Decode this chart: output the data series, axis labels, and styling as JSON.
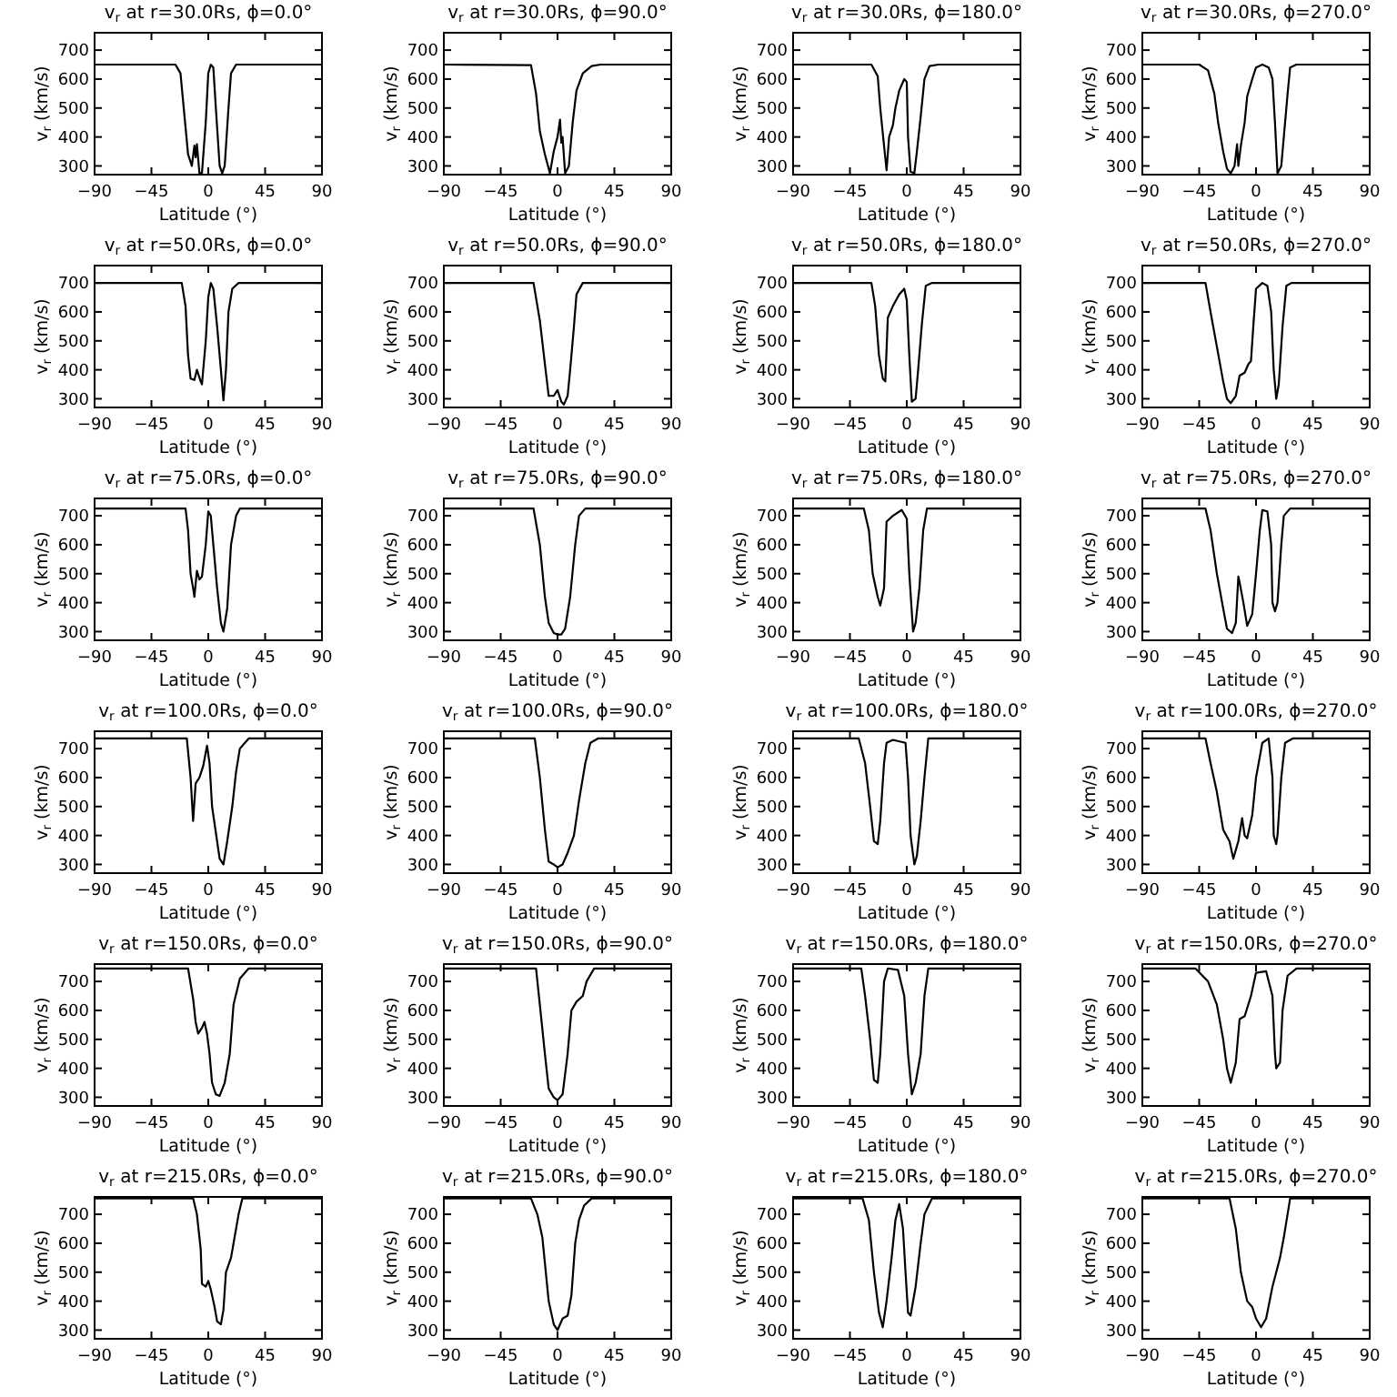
{
  "chart_data": [
    {
      "type": "line",
      "title": "v$_{r}$ at r=30.0Rs, ϕ=0.0°",
      "xlabel": "Latitude (°)",
      "ylabel": "v$_{r}$ (km/s)",
      "xlim": [
        -90,
        90
      ],
      "ylim": [
        270,
        760
      ],
      "xticks": [
        -90,
        -45,
        0,
        45,
        90
      ],
      "yticks": [
        300,
        400,
        500,
        600,
        700
      ],
      "series": [
        {
          "color": "#000000",
          "x": [
            -90,
            -26,
            -22,
            -19,
            -16,
            -13,
            -11,
            -10,
            -9,
            -7,
            -5,
            -2,
            0,
            2,
            4,
            6,
            9,
            11,
            13,
            16,
            18,
            22,
            90
          ],
          "values": [
            650,
            650,
            620,
            480,
            340,
            300,
            370,
            330,
            375,
            275,
            275,
            450,
            620,
            650,
            640,
            500,
            300,
            275,
            300,
            500,
            620,
            650,
            650
          ]
        }
      ]
    },
    {
      "type": "line",
      "title": "v$_{r}$ at r=30.0Rs, ϕ=90.0°",
      "xlabel": "Latitude (°)",
      "ylabel": "v$_{r}$ (km/s)",
      "xlim": [
        -90,
        90
      ],
      "ylim": [
        270,
        760
      ],
      "xticks": [
        -90,
        -45,
        0,
        45,
        90
      ],
      "yticks": [
        300,
        400,
        500,
        600,
        700
      ],
      "series": [
        {
          "color": "#000000",
          "x": [
            -90,
            -21,
            -17,
            -14,
            -10,
            -6,
            -3,
            0,
            2,
            3,
            4,
            6,
            9,
            12,
            15,
            20,
            27,
            34,
            90
          ],
          "values": [
            650,
            648,
            550,
            420,
            340,
            275,
            350,
            400,
            460,
            380,
            400,
            275,
            300,
            450,
            560,
            620,
            645,
            650,
            650
          ]
        }
      ]
    },
    {
      "type": "line",
      "title": "v$_{r}$ at r=30.0Rs, ϕ=180.0°",
      "xlabel": "Latitude (°)",
      "ylabel": "v$_{r}$ (km/s)",
      "xlim": [
        -90,
        90
      ],
      "ylim": [
        270,
        760
      ],
      "xticks": [
        -90,
        -45,
        0,
        45,
        90
      ],
      "yticks": [
        300,
        400,
        500,
        600,
        700
      ],
      "series": [
        {
          "color": "#000000",
          "x": [
            -90,
            -28,
            -23,
            -21,
            -18,
            -16,
            -14,
            -11,
            -9,
            -6,
            -2,
            0,
            1,
            3,
            6,
            8,
            11,
            14,
            18,
            25,
            90
          ],
          "values": [
            650,
            650,
            610,
            500,
            370,
            285,
            400,
            440,
            500,
            560,
            600,
            590,
            400,
            280,
            275,
            350,
            470,
            600,
            645,
            650,
            650
          ]
        }
      ]
    },
    {
      "type": "line",
      "title": "v$_{r}$ at r=30.0Rs, ϕ=270.0°",
      "xlabel": "Latitude (°)",
      "ylabel": "v$_{r}$ (km/s)",
      "xlim": [
        -90,
        90
      ],
      "ylim": [
        270,
        760
      ],
      "xticks": [
        -90,
        -45,
        0,
        45,
        90
      ],
      "yticks": [
        300,
        400,
        500,
        600,
        700
      ],
      "series": [
        {
          "color": "#000000",
          "x": [
            -90,
            -45,
            -38,
            -33,
            -30,
            -26,
            -23,
            -20,
            -17,
            -15,
            -14,
            -12,
            -9,
            -7,
            -3,
            0,
            5,
            10,
            13,
            15,
            17,
            20,
            22,
            25,
            27,
            32,
            90
          ],
          "values": [
            650,
            650,
            630,
            550,
            450,
            350,
            290,
            275,
            300,
            375,
            300,
            370,
            450,
            540,
            600,
            640,
            650,
            640,
            600,
            450,
            275,
            300,
            400,
            550,
            640,
            650,
            650
          ]
        }
      ]
    },
    {
      "type": "line",
      "title": "v$_{r}$ at r=50.0Rs, ϕ=0.0°",
      "xlabel": "Latitude (°)",
      "ylabel": "v$_{r}$ (km/s)",
      "xlim": [
        -90,
        90
      ],
      "ylim": [
        270,
        760
      ],
      "xticks": [
        -90,
        -45,
        0,
        45,
        90
      ],
      "yticks": [
        300,
        400,
        500,
        600,
        700
      ],
      "series": [
        {
          "color": "#000000",
          "x": [
            -90,
            -21,
            -18,
            -16,
            -14,
            -11,
            -9,
            -6,
            -5,
            -2,
            0,
            2,
            4,
            7,
            10,
            12,
            14,
            16,
            19,
            24,
            90
          ],
          "values": [
            700,
            700,
            620,
            450,
            370,
            365,
            400,
            360,
            350,
            500,
            650,
            700,
            680,
            550,
            400,
            295,
            400,
            600,
            680,
            700,
            700
          ]
        }
      ]
    },
    {
      "type": "line",
      "title": "v$_{r}$ at r=50.0Rs, ϕ=90.0°",
      "xlabel": "Latitude (°)",
      "ylabel": "v$_{r}$ (km/s)",
      "xlim": [
        -90,
        90
      ],
      "ylim": [
        270,
        760
      ],
      "xticks": [
        -90,
        -45,
        0,
        45,
        90
      ],
      "yticks": [
        300,
        400,
        500,
        600,
        700
      ],
      "series": [
        {
          "color": "#000000",
          "x": [
            -90,
            -19,
            -14,
            -10,
            -7,
            -3,
            0,
            3,
            5,
            8,
            10,
            13,
            15,
            20,
            90
          ],
          "values": [
            700,
            700,
            570,
            420,
            310,
            310,
            330,
            290,
            280,
            310,
            400,
            550,
            660,
            700,
            700
          ]
        }
      ]
    },
    {
      "type": "line",
      "title": "v$_{r}$ at r=50.0Rs, ϕ=180.0°",
      "xlabel": "Latitude (°)",
      "ylabel": "v$_{r}$ (km/s)",
      "xlim": [
        -90,
        90
      ],
      "ylim": [
        270,
        760
      ],
      "xticks": [
        -90,
        -45,
        0,
        45,
        90
      ],
      "yticks": [
        300,
        400,
        500,
        600,
        700
      ],
      "series": [
        {
          "color": "#000000",
          "x": [
            -90,
            -28,
            -25,
            -22,
            -19,
            -17,
            -15,
            -11,
            -6,
            -2,
            0,
            2,
            4,
            7,
            9,
            12,
            15,
            20,
            90
          ],
          "values": [
            700,
            700,
            620,
            450,
            370,
            360,
            580,
            620,
            660,
            680,
            640,
            450,
            290,
            300,
            400,
            560,
            690,
            700,
            700
          ]
        }
      ]
    },
    {
      "type": "line",
      "title": "v$_{r}$ at r=50.0Rs, ϕ=270.0°",
      "xlabel": "Latitude (°)",
      "ylabel": "v$_{r}$ (km/s)",
      "xlim": [
        -90,
        90
      ],
      "ylim": [
        270,
        760
      ],
      "xticks": [
        -90,
        -45,
        0,
        45,
        90
      ],
      "yticks": [
        300,
        400,
        500,
        600,
        700
      ],
      "series": [
        {
          "color": "#000000",
          "x": [
            -90,
            -40,
            -36,
            -31,
            -26,
            -23,
            -20,
            -16,
            -13,
            -9,
            -6,
            -4,
            -2,
            0,
            5,
            9,
            12,
            14,
            16,
            18,
            21,
            24,
            28,
            90
          ],
          "values": [
            700,
            700,
            600,
            480,
            360,
            300,
            285,
            310,
            380,
            390,
            420,
            430,
            560,
            680,
            700,
            690,
            600,
            400,
            300,
            350,
            550,
            690,
            700,
            700
          ]
        }
      ]
    },
    {
      "type": "line",
      "title": "v$_{r}$ at r=75.0Rs, ϕ=0.0°",
      "xlabel": "Latitude (°)",
      "ylabel": "v$_{r}$ (km/s)",
      "xlim": [
        -90,
        90
      ],
      "ylim": [
        270,
        760
      ],
      "xticks": [
        -90,
        -45,
        0,
        45,
        90
      ],
      "yticks": [
        300,
        400,
        500,
        600,
        700
      ],
      "series": [
        {
          "color": "#000000",
          "x": [
            -90,
            -18,
            -16,
            -14,
            -12,
            -11,
            -9,
            -7,
            -5,
            -2,
            0,
            2,
            4,
            7,
            10,
            12,
            15,
            18,
            22,
            25,
            90
          ],
          "values": [
            725,
            725,
            650,
            500,
            450,
            420,
            510,
            480,
            490,
            600,
            715,
            700,
            600,
            450,
            330,
            300,
            380,
            600,
            700,
            725,
            725
          ]
        }
      ]
    },
    {
      "type": "line",
      "title": "v$_{r}$ at r=75.0Rs, ϕ=90.0°",
      "xlabel": "Latitude (°)",
      "ylabel": "v$_{r}$ (km/s)",
      "xlim": [
        -90,
        90
      ],
      "ylim": [
        270,
        760
      ],
      "xticks": [
        -90,
        -45,
        0,
        45,
        90
      ],
      "yticks": [
        300,
        400,
        500,
        600,
        700
      ],
      "series": [
        {
          "color": "#000000",
          "x": [
            -90,
            -19,
            -14,
            -10,
            -7,
            -3,
            0,
            3,
            6,
            10,
            14,
            17,
            22,
            90
          ],
          "values": [
            725,
            725,
            600,
            420,
            330,
            295,
            290,
            290,
            310,
            420,
            600,
            700,
            725,
            725
          ]
        }
      ]
    },
    {
      "type": "line",
      "title": "v$_{r}$ at r=75.0Rs, ϕ=180.0°",
      "xlabel": "Latitude (°)",
      "ylabel": "v$_{r}$ (km/s)",
      "xlim": [
        -90,
        90
      ],
      "ylim": [
        270,
        760
      ],
      "xticks": [
        -90,
        -45,
        0,
        45,
        90
      ],
      "yticks": [
        300,
        400,
        500,
        600,
        700
      ],
      "series": [
        {
          "color": "#000000",
          "x": [
            -90,
            -34,
            -30,
            -27,
            -23,
            -21,
            -18,
            -16,
            -11,
            -4,
            0,
            2,
            5,
            7,
            10,
            13,
            16,
            90
          ],
          "values": [
            725,
            725,
            650,
            500,
            420,
            390,
            450,
            680,
            700,
            720,
            690,
            500,
            300,
            330,
            450,
            650,
            725,
            725
          ]
        }
      ]
    },
    {
      "type": "line",
      "title": "v$_{r}$ at r=75.0Rs, ϕ=270.0°",
      "xlabel": "Latitude (°)",
      "ylabel": "v$_{r}$ (km/s)",
      "xlim": [
        -90,
        90
      ],
      "ylim": [
        270,
        760
      ],
      "xticks": [
        -90,
        -45,
        0,
        45,
        90
      ],
      "yticks": [
        300,
        400,
        500,
        600,
        700
      ],
      "series": [
        {
          "color": "#000000",
          "x": [
            -90,
            -40,
            -36,
            -31,
            -26,
            -23,
            -19,
            -16,
            -14,
            -13,
            -10,
            -7,
            -3,
            0,
            3,
            5,
            9,
            12,
            13,
            15,
            17,
            20,
            22,
            27,
            90
          ],
          "values": [
            725,
            725,
            650,
            500,
            380,
            310,
            295,
            330,
            490,
            470,
            400,
            320,
            360,
            500,
            650,
            720,
            715,
            600,
            400,
            370,
            400,
            600,
            700,
            725,
            725
          ]
        }
      ]
    },
    {
      "type": "line",
      "title": "v$_{r}$ at r=100.0Rs, ϕ=0.0°",
      "xlabel": "Latitude (°)",
      "ylabel": "v$_{r}$ (km/s)",
      "xlim": [
        -90,
        90
      ],
      "ylim": [
        270,
        760
      ],
      "xticks": [
        -90,
        -45,
        0,
        45,
        90
      ],
      "yticks": [
        300,
        400,
        500,
        600,
        700
      ],
      "series": [
        {
          "color": "#000000",
          "x": [
            -90,
            -17,
            -14,
            -12,
            -10,
            -7,
            -4,
            -1,
            1,
            3,
            7,
            9,
            12,
            15,
            19,
            22,
            25,
            32,
            90
          ],
          "values": [
            735,
            735,
            600,
            450,
            580,
            600,
            640,
            710,
            650,
            500,
            380,
            320,
            300,
            380,
            500,
            620,
            700,
            735,
            735
          ]
        }
      ]
    },
    {
      "type": "line",
      "title": "v$_{r}$ at r=100.0Rs, ϕ=90.0°",
      "xlabel": "Latitude (°)",
      "ylabel": "v$_{r}$ (km/s)",
      "xlim": [
        -90,
        90
      ],
      "ylim": [
        270,
        760
      ],
      "xticks": [
        -90,
        -45,
        0,
        45,
        90
      ],
      "yticks": [
        300,
        400,
        500,
        600,
        700
      ],
      "series": [
        {
          "color": "#000000",
          "x": [
            -90,
            -18,
            -14,
            -10,
            -7,
            -3,
            0,
            4,
            8,
            13,
            17,
            22,
            26,
            32,
            90
          ],
          "values": [
            735,
            735,
            600,
            420,
            310,
            300,
            290,
            300,
            340,
            400,
            520,
            650,
            720,
            735,
            735
          ]
        }
      ]
    },
    {
      "type": "line",
      "title": "v$_{r}$ at r=100.0Rs, ϕ=180.0°",
      "xlabel": "Latitude (°)",
      "ylabel": "v$_{r}$ (km/s)",
      "xlim": [
        -90,
        90
      ],
      "ylim": [
        270,
        760
      ],
      "xticks": [
        -90,
        -45,
        0,
        45,
        90
      ],
      "yticks": [
        300,
        400,
        500,
        600,
        700
      ],
      "series": [
        {
          "color": "#000000",
          "x": [
            -90,
            -38,
            -33,
            -29,
            -26,
            -23,
            -21,
            -18,
            -16,
            -11,
            -1,
            1,
            3,
            6,
            8,
            11,
            14,
            17,
            90
          ],
          "values": [
            735,
            735,
            650,
            500,
            380,
            370,
            450,
            650,
            720,
            730,
            720,
            600,
            400,
            300,
            330,
            450,
            600,
            735,
            735
          ]
        }
      ]
    },
    {
      "type": "line",
      "title": "v$_{r}$ at r=100.0Rs, ϕ=270.0°",
      "xlabel": "Latitude (°)",
      "ylabel": "v$_{r}$ (km/s)",
      "xlim": [
        -90,
        90
      ],
      "ylim": [
        270,
        760
      ],
      "xticks": [
        -90,
        -45,
        0,
        45,
        90
      ],
      "yticks": [
        300,
        400,
        500,
        600,
        700
      ],
      "series": [
        {
          "color": "#000000",
          "x": [
            -90,
            -40,
            -36,
            -31,
            -26,
            -21,
            -18,
            -14,
            -11,
            -9,
            -7,
            -3,
            0,
            5,
            10,
            13,
            14,
            16,
            17,
            20,
            23,
            29,
            90
          ],
          "values": [
            735,
            735,
            650,
            550,
            420,
            380,
            320,
            380,
            460,
            400,
            390,
            470,
            600,
            720,
            735,
            600,
            400,
            370,
            400,
            600,
            720,
            735,
            735
          ]
        }
      ]
    },
    {
      "type": "line",
      "title": "v$_{r}$ at r=150.0Rs, ϕ=0.0°",
      "xlabel": "Latitude (°)",
      "ylabel": "v$_{r}$ (km/s)",
      "xlim": [
        -90,
        90
      ],
      "ylim": [
        270,
        760
      ],
      "xticks": [
        -90,
        -45,
        0,
        45,
        90
      ],
      "yticks": [
        300,
        400,
        500,
        600,
        700
      ],
      "series": [
        {
          "color": "#000000",
          "x": [
            -90,
            -16,
            -12,
            -10,
            -8,
            -5,
            -3,
            -1,
            1,
            3,
            6,
            9,
            13,
            17,
            20,
            25,
            32,
            90
          ],
          "values": [
            745,
            745,
            640,
            560,
            520,
            540,
            560,
            520,
            450,
            350,
            310,
            305,
            350,
            450,
            620,
            710,
            745,
            745
          ]
        }
      ]
    },
    {
      "type": "line",
      "title": "v$_{r}$ at r=150.0Rs, ϕ=90.0°",
      "xlabel": "Latitude (°)",
      "ylabel": "v$_{r}$ (km/s)",
      "xlim": [
        -90,
        90
      ],
      "ylim": [
        270,
        760
      ],
      "xticks": [
        -90,
        -45,
        0,
        45,
        90
      ],
      "yticks": [
        300,
        400,
        500,
        600,
        700
      ],
      "series": [
        {
          "color": "#000000",
          "x": [
            -90,
            -17,
            -14,
            -10,
            -7,
            -3,
            0,
            4,
            8,
            11,
            15,
            20,
            23,
            29,
            90
          ],
          "values": [
            745,
            745,
            620,
            450,
            330,
            300,
            290,
            310,
            450,
            600,
            630,
            650,
            700,
            745,
            745
          ]
        }
      ]
    },
    {
      "type": "line",
      "title": "v$_{r}$ at r=150.0Rs, ϕ=180.0°",
      "xlabel": "Latitude (°)",
      "ylabel": "v$_{r}$ (km/s)",
      "xlim": [
        -90,
        90
      ],
      "ylim": [
        270,
        760
      ],
      "xticks": [
        -90,
        -45,
        0,
        45,
        90
      ],
      "yticks": [
        300,
        400,
        500,
        600,
        700
      ],
      "series": [
        {
          "color": "#000000",
          "x": [
            -90,
            -36,
            -33,
            -29,
            -26,
            -23,
            -21,
            -18,
            -15,
            -7,
            -2,
            1,
            4,
            7,
            11,
            14,
            17,
            90
          ],
          "values": [
            745,
            745,
            650,
            500,
            360,
            350,
            450,
            700,
            745,
            740,
            650,
            450,
            310,
            350,
            450,
            650,
            745,
            745
          ]
        }
      ]
    },
    {
      "type": "line",
      "title": "v$_{r}$ at r=150.0Rs, ϕ=270.0°",
      "xlabel": "Latitude (°)",
      "ylabel": "v$_{r}$ (km/s)",
      "xlim": [
        -90,
        90
      ],
      "ylim": [
        270,
        760
      ],
      "xticks": [
        -90,
        -45,
        0,
        45,
        90
      ],
      "yticks": [
        300,
        400,
        500,
        600,
        700
      ],
      "series": [
        {
          "color": "#000000",
          "x": [
            -90,
            -48,
            -38,
            -31,
            -26,
            -23,
            -20,
            -16,
            -13,
            -9,
            -4,
            0,
            8,
            13,
            15,
            16,
            19,
            21,
            25,
            32,
            90
          ],
          "values": [
            745,
            745,
            700,
            620,
            500,
            400,
            350,
            420,
            570,
            580,
            650,
            730,
            735,
            650,
            450,
            400,
            420,
            600,
            720,
            745,
            745
          ]
        }
      ]
    },
    {
      "type": "line",
      "title": "v$_{r}$ at r=215.0Rs, ϕ=0.0°",
      "xlabel": "Latitude (°)",
      "ylabel": "v$_{r}$ (km/s)",
      "xlim": [
        -90,
        90
      ],
      "ylim": [
        270,
        760
      ],
      "xticks": [
        -90,
        -45,
        0,
        45,
        90
      ],
      "yticks": [
        300,
        400,
        500,
        600,
        700
      ],
      "series": [
        {
          "color": "#000000",
          "x": [
            -90,
            -12,
            -9,
            -6,
            -5,
            -2,
            0,
            2,
            5,
            7,
            10,
            12,
            14,
            18,
            20,
            24,
            27,
            90
          ],
          "values": [
            755,
            755,
            700,
            580,
            460,
            450,
            470,
            440,
            380,
            330,
            320,
            370,
            500,
            550,
            600,
            700,
            755,
            755
          ]
        }
      ]
    },
    {
      "type": "line",
      "title": "v$_{r}$ at r=215.0Rs, ϕ=90.0°",
      "xlabel": "Latitude (°)",
      "ylabel": "v$_{r}$ (km/s)",
      "xlim": [
        -90,
        90
      ],
      "ylim": [
        270,
        760
      ],
      "xticks": [
        -90,
        -45,
        0,
        45,
        90
      ],
      "yticks": [
        300,
        400,
        500,
        600,
        700
      ],
      "series": [
        {
          "color": "#000000",
          "x": [
            -90,
            -21,
            -16,
            -12,
            -7,
            -3,
            0,
            4,
            8,
            11,
            14,
            17,
            21,
            27,
            90
          ],
          "values": [
            755,
            755,
            700,
            620,
            400,
            320,
            300,
            340,
            350,
            420,
            600,
            680,
            730,
            755,
            755
          ]
        }
      ]
    },
    {
      "type": "line",
      "title": "v$_{r}$ at r=215.0Rs, ϕ=180.0°",
      "xlabel": "Latitude (°)",
      "ylabel": "v$_{r}$ (km/s)",
      "xlim": [
        -90,
        90
      ],
      "ylim": [
        270,
        760
      ],
      "xticks": [
        -90,
        -45,
        0,
        45,
        90
      ],
      "yticks": [
        300,
        400,
        500,
        600,
        700
      ],
      "series": [
        {
          "color": "#000000",
          "x": [
            -90,
            -35,
            -30,
            -26,
            -22,
            -19,
            -16,
            -12,
            -9,
            -6,
            -3,
            -1,
            1,
            3,
            7,
            11,
            14,
            20,
            90
          ],
          "values": [
            755,
            755,
            680,
            500,
            360,
            310,
            400,
            550,
            680,
            735,
            650,
            500,
            360,
            350,
            450,
            600,
            700,
            755,
            755
          ]
        }
      ]
    },
    {
      "type": "line",
      "title": "v$_{r}$ at r=215.0Rs, ϕ=270.0°",
      "xlabel": "Latitude (°)",
      "ylabel": "v$_{r}$ (km/s)",
      "xlim": [
        -90,
        90
      ],
      "ylim": [
        270,
        760
      ],
      "xticks": [
        -90,
        -45,
        0,
        45,
        90
      ],
      "yticks": [
        300,
        400,
        500,
        600,
        700
      ],
      "series": [
        {
          "color": "#000000",
          "x": [
            -90,
            -21,
            -16,
            -12,
            -7,
            -3,
            0,
            4,
            8,
            13,
            19,
            22,
            27,
            90
          ],
          "values": [
            755,
            755,
            650,
            500,
            400,
            380,
            340,
            310,
            340,
            450,
            550,
            620,
            755,
            755
          ]
        }
      ]
    }
  ]
}
